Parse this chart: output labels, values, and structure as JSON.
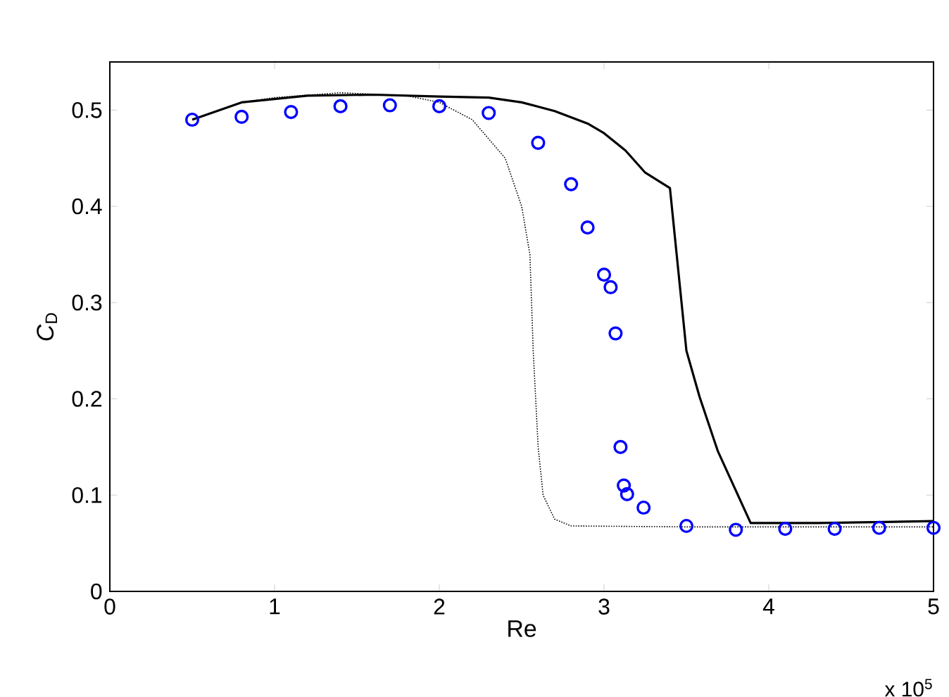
{
  "chart_data": {
    "type": "line",
    "xlabel": "Re",
    "ylabel": "*C*$_{D}$",
    "annotations": [
      "x 10$^{5}$"
    ],
    "xlim": [
      0,
      5
    ],
    "ylim": [
      0,
      0.55
    ],
    "xticks": [
      0,
      1,
      2,
      3,
      4,
      5
    ],
    "yticks": [
      0,
      0.1,
      0.2,
      0.3,
      0.4,
      0.5
    ],
    "grid": false,
    "series": [
      {
        "color": "#000000",
        "line_style": "dotted",
        "marker": "none",
        "x": [
          0.8,
          1.0,
          1.4,
          1.8,
          2.0,
          2.2,
          2.4,
          2.5,
          2.55,
          2.57,
          2.6,
          2.63,
          2.7,
          2.8,
          3.5,
          5.0
        ],
        "values": [
          0.508,
          0.513,
          0.518,
          0.515,
          0.508,
          0.49,
          0.45,
          0.4,
          0.35,
          0.25,
          0.15,
          0.1,
          0.075,
          0.068,
          0.067,
          0.067
        ]
      },
      {
        "color": "#000000",
        "line_style": "solid",
        "marker": "none",
        "x": [
          0.5,
          0.8,
          1.2,
          1.6,
          2.0,
          2.3,
          2.5,
          2.7,
          2.9,
          3.0,
          3.13,
          3.25,
          3.4,
          3.5,
          3.58,
          3.69,
          3.89,
          4.3,
          5.0
        ],
        "values": [
          0.49,
          0.508,
          0.515,
          0.516,
          0.514,
          0.513,
          0.508,
          0.499,
          0.486,
          0.476,
          0.458,
          0.435,
          0.419,
          0.25,
          0.202,
          0.146,
          0.071,
          0.071,
          0.073
        ]
      },
      {
        "type": "scatter",
        "color": "#0000ff",
        "marker": "circle",
        "x": [
          0.5,
          0.8,
          1.1,
          1.4,
          1.7,
          2.0,
          2.3,
          2.6,
          2.8,
          2.9,
          3.0,
          3.04,
          3.07,
          3.1,
          3.12,
          3.14,
          3.24,
          3.5,
          3.8,
          4.1,
          4.4,
          4.67,
          5.0
        ],
        "values": [
          0.49,
          0.493,
          0.498,
          0.504,
          0.505,
          0.504,
          0.497,
          0.466,
          0.423,
          0.378,
          0.329,
          0.316,
          0.268,
          0.15,
          0.11,
          0.101,
          0.087,
          0.068,
          0.064,
          0.065,
          0.065,
          0.066,
          0.066
        ]
      }
    ]
  }
}
